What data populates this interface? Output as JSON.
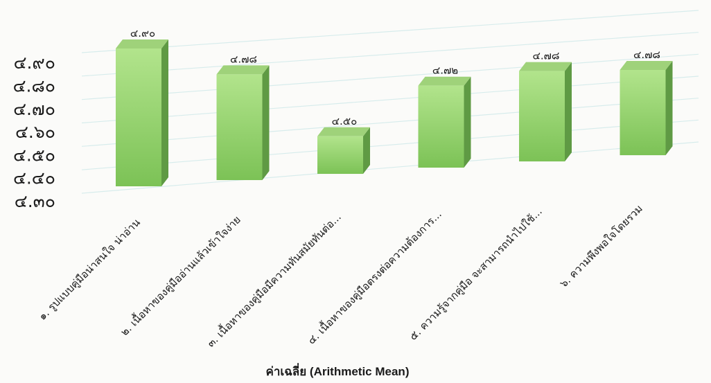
{
  "chart_data": {
    "type": "bar",
    "categories": [
      "๑. รูปแบบคู่มือน่าสนใจ น่าอ่าน",
      "๒. เนื้อหาของคู่มืออ่านแล้วเข้าใจง่าย",
      "๓. เนื้อหาของคู่มือมีความทันสมัยทันต่อ...",
      "๔. เนื้อหาของคู่มือตรงต่อความต้องการ...",
      "๕. ความรู้จากคู่มือ จะสามารถนำไปใช้...",
      "๖. ความพึงพอใจโดยรวม"
    ],
    "values": [
      4.9,
      4.78,
      4.5,
      4.72,
      4.78,
      4.78
    ],
    "value_labels": [
      "๔.๙๐",
      "๔.๗๘",
      "๔.๕๐",
      "๔.๗๒",
      "๔.๗๘",
      "๔.๗๘"
    ],
    "ylim": [
      4.3,
      4.9
    ],
    "yticks": [
      4.9,
      4.8,
      4.7,
      4.6,
      4.5,
      4.4,
      4.3
    ],
    "ytick_labels": [
      "๔.๙๐",
      "๔.๘๐",
      "๔.๗๐",
      "๔.๖๐",
      "๔.๕๐",
      "๔.๔๐",
      "๔.๓๐"
    ],
    "xlabel": "ค่าเฉลี่ย (Arithmetic Mean)",
    "ylabel": "",
    "title": "",
    "grid": true,
    "legend": false,
    "bar_style": "3d",
    "colors": {
      "front_top": "#b2e48c",
      "front_bottom": "#7cc256",
      "side": "#5f9a44",
      "top": "#9fd27a",
      "grid": "#d7ecec",
      "text": "#1a1a1a"
    }
  }
}
